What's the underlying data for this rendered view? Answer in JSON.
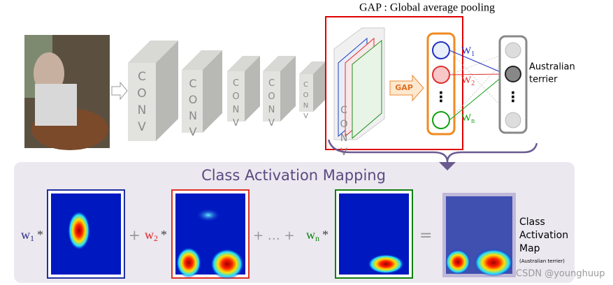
{
  "header": {
    "title": "GAP : Global average pooling"
  },
  "network": {
    "conv_labels": [
      "CONV",
      "CONV",
      "CONV",
      "CONV",
      "CONV",
      "CONV"
    ],
    "gap_label": "GAP",
    "weights": [
      {
        "base": "W",
        "sub": "1"
      },
      {
        "base": "W",
        "sub": "2"
      },
      {
        "base": "W",
        "sub": "n"
      }
    ],
    "ellipsis": "⋮",
    "output_label": [
      "Australian",
      "terrier"
    ]
  },
  "cam": {
    "title": "Class Activation Mapping",
    "terms": [
      {
        "base": "w",
        "sub": "1",
        "op": "*"
      },
      {
        "base": "w",
        "sub": "2",
        "op": "*"
      },
      {
        "base": "w",
        "sub": "n",
        "op": "*"
      }
    ],
    "plus": "+",
    "ellipsis_sum": "+ … +",
    "equals": "=",
    "result_label": [
      "Class",
      "Activation",
      "Map"
    ],
    "result_note": "(Australian terrier)"
  },
  "watermark": "CSDN @younghuup"
}
